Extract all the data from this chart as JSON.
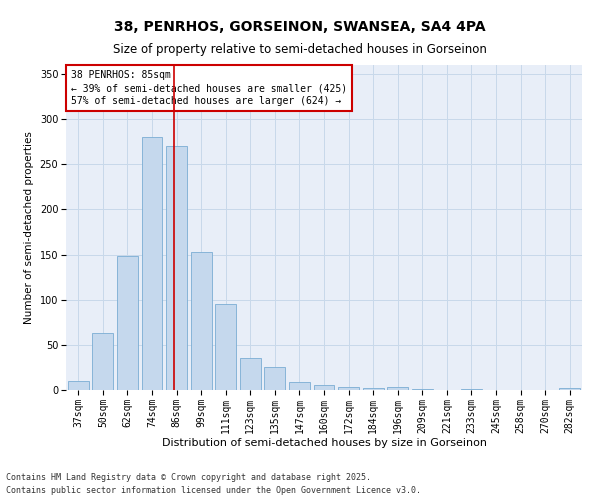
{
  "title1": "38, PENRHOS, GORSEINON, SWANSEA, SA4 4PA",
  "title2": "Size of property relative to semi-detached houses in Gorseinon",
  "xlabel": "Distribution of semi-detached houses by size in Gorseinon",
  "ylabel": "Number of semi-detached properties",
  "categories": [
    "37sqm",
    "50sqm",
    "62sqm",
    "74sqm",
    "86sqm",
    "99sqm",
    "111sqm",
    "123sqm",
    "135sqm",
    "147sqm",
    "160sqm",
    "172sqm",
    "184sqm",
    "196sqm",
    "209sqm",
    "221sqm",
    "233sqm",
    "245sqm",
    "258sqm",
    "270sqm",
    "282sqm"
  ],
  "values": [
    10,
    63,
    148,
    280,
    270,
    153,
    95,
    35,
    25,
    9,
    5,
    3,
    2,
    3,
    1,
    0,
    1,
    0,
    0,
    0,
    2
  ],
  "bar_color": "#c5d8ed",
  "bar_edge_color": "#7aadd4",
  "grid_color": "#c8d8ea",
  "background_color": "#e8eef8",
  "vline_color": "#cc0000",
  "annotation_title": "38 PENRHOS: 85sqm",
  "annotation_line1": "← 39% of semi-detached houses are smaller (425)",
  "annotation_line2": "57% of semi-detached houses are larger (624) →",
  "annotation_box_color": "#cc0000",
  "ylim": [
    0,
    360
  ],
  "yticks": [
    0,
    50,
    100,
    150,
    200,
    250,
    300,
    350
  ],
  "footnote1": "Contains HM Land Registry data © Crown copyright and database right 2025.",
  "footnote2": "Contains public sector information licensed under the Open Government Licence v3.0.",
  "title1_fontsize": 10,
  "title2_fontsize": 8.5,
  "xlabel_fontsize": 8,
  "ylabel_fontsize": 7.5,
  "tick_fontsize": 7,
  "annotation_fontsize": 7,
  "footnote_fontsize": 6
}
